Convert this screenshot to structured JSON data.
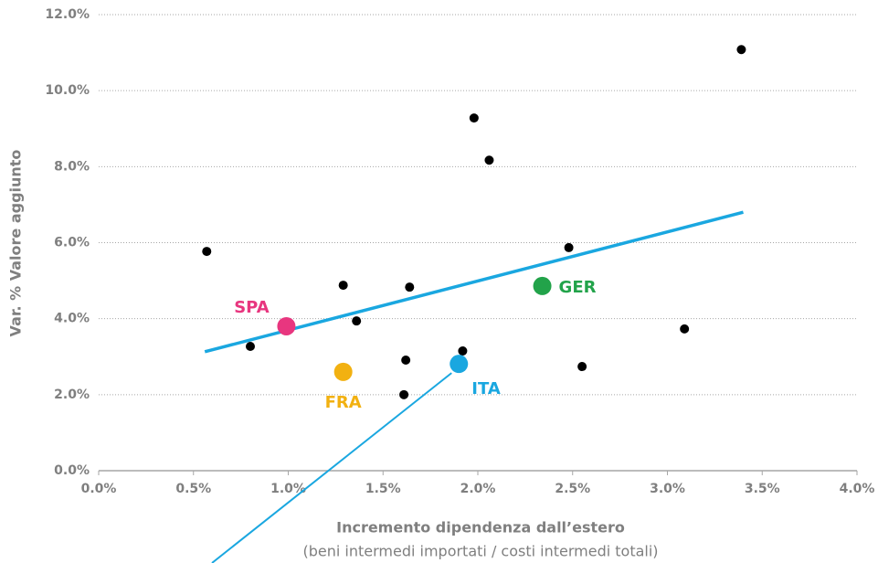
{
  "chart_data": {
    "type": "scatter",
    "xlabel": "Incremento dipendenza dall’estero",
    "xlabel_sub": "(beni intermedi importati / costi intermedi totali)",
    "ylabel": "Var. % Valore aggiunto",
    "xlim": [
      0,
      4
    ],
    "ylim": [
      0,
      12
    ],
    "xticks": [
      {
        "value": 0,
        "label": "0.0%"
      },
      {
        "value": 0.5,
        "label": "0.5%"
      },
      {
        "value": 1,
        "label": "1.0%"
      },
      {
        "value": 1.5,
        "label": "1.5%"
      },
      {
        "value": 2,
        "label": "2.0%"
      },
      {
        "value": 2.5,
        "label": "2.5%"
      },
      {
        "value": 3,
        "label": "3.0%"
      },
      {
        "value": 3.5,
        "label": "3.5%"
      },
      {
        "value": 4,
        "label": "4.0%"
      }
    ],
    "yticks": [
      {
        "value": 0,
        "label": "0.0%"
      },
      {
        "value": 2,
        "label": "2.0%"
      },
      {
        "value": 4,
        "label": "4.0%"
      },
      {
        "value": 6,
        "label": "6.0%"
      },
      {
        "value": 8,
        "label": "8.0%"
      },
      {
        "value": 10,
        "label": "10.0%"
      },
      {
        "value": 12,
        "label": "12.0%"
      }
    ],
    "grid": true,
    "series": [
      {
        "color": "#000000",
        "x": [
          0.57,
          0.8,
          1.29,
          1.36,
          1.64,
          1.62,
          1.61,
          1.92,
          1.98,
          2.06,
          2.48,
          2.55,
          3.09,
          3.39
        ],
        "values": [
          5.77,
          3.27,
          4.88,
          3.94,
          4.83,
          2.91,
          2.0,
          3.15,
          9.28,
          8.17,
          5.87,
          2.74,
          3.73,
          11.08
        ]
      },
      {
        "name": "SPA",
        "color": "#e8367f",
        "x": [
          0.99
        ],
        "values": [
          3.8
        ]
      },
      {
        "name": "FRA",
        "color": "#f2b111",
        "x": [
          1.29
        ],
        "values": [
          2.6
        ]
      },
      {
        "name": "ITA",
        "color": "#1aa7e0",
        "x": [
          1.9
        ],
        "values": [
          2.81
        ]
      },
      {
        "name": "GER",
        "color": "#22a34a",
        "x": [
          2.34
        ],
        "values": [
          4.86
        ]
      }
    ],
    "trendline": {
      "color": "#1aa7e0",
      "x": [
        0.56,
        3.4
      ],
      "values": [
        3.13,
        6.8
      ]
    }
  }
}
